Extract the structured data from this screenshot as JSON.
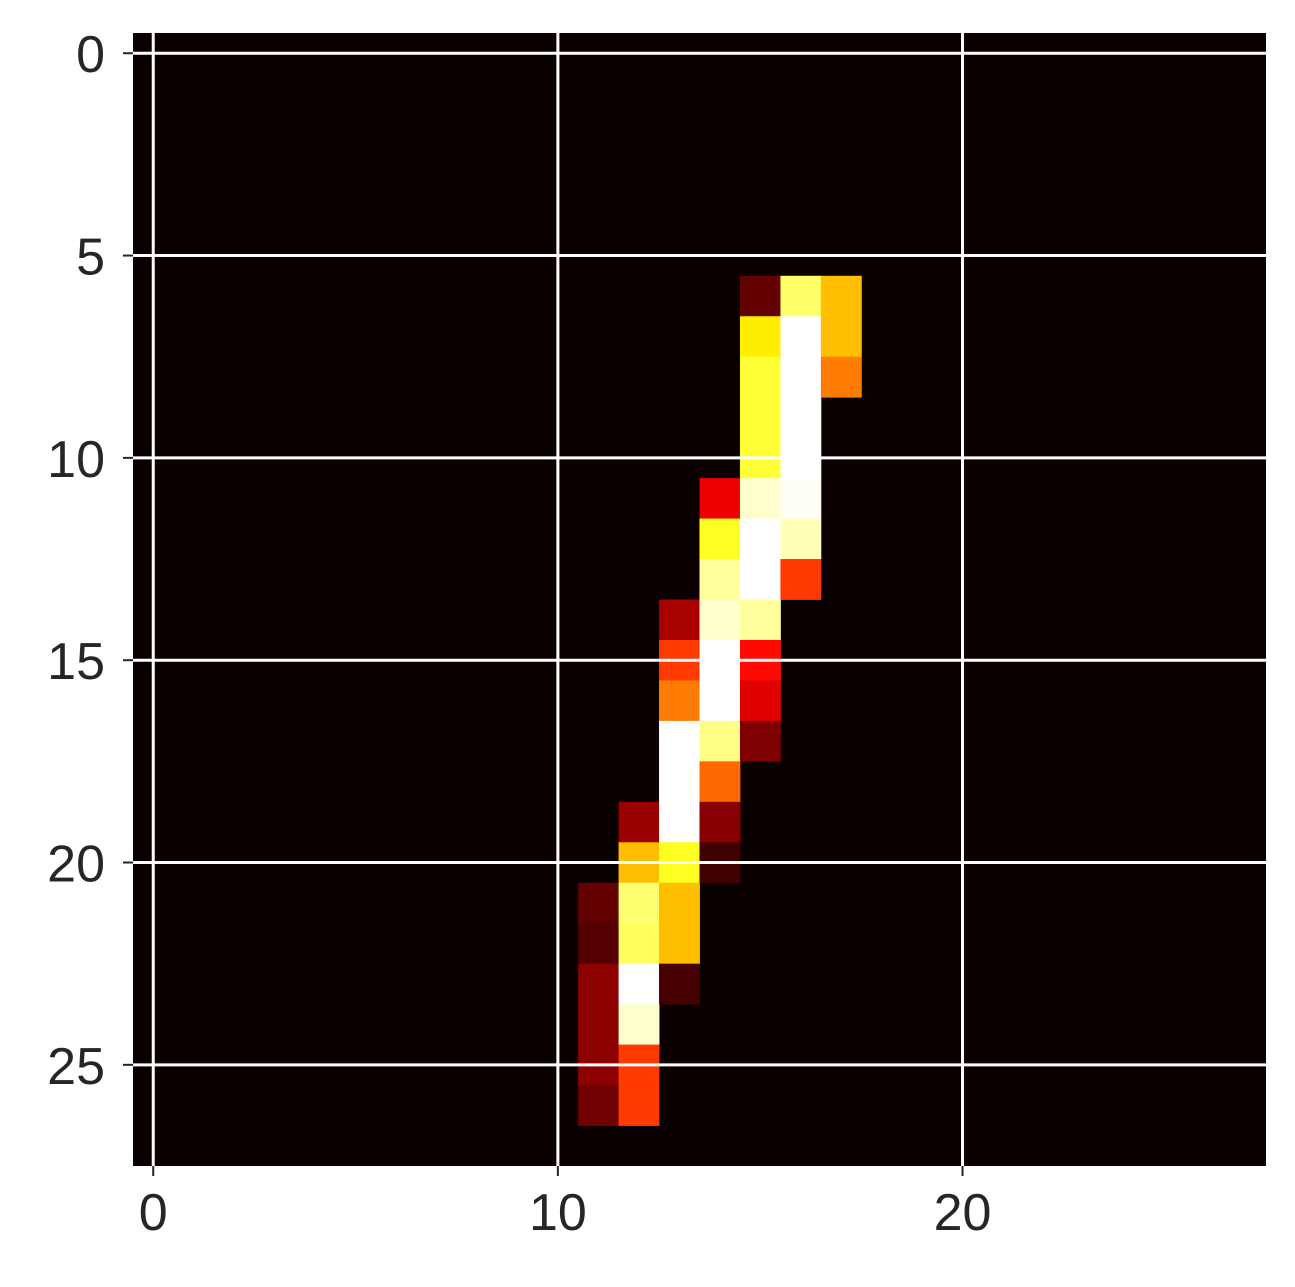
{
  "chart_data": {
    "type": "heatmap",
    "title": "",
    "xlabel": "",
    "ylabel": "",
    "colormap": "hot",
    "background_color": "#0b0000",
    "grid_color": "#ffffff",
    "grid": true,
    "rows": 28,
    "cols": 28,
    "xlim": [
      -0.5,
      27.5
    ],
    "ylim": [
      27.5,
      -0.5
    ],
    "x_ticks": [
      0,
      10,
      20
    ],
    "y_ticks": [
      0,
      5,
      10,
      15,
      20,
      25
    ],
    "x_tick_labels": [
      "0",
      "10",
      "20"
    ],
    "y_tick_labels": [
      "0",
      "5",
      "10",
      "15",
      "20",
      "25"
    ],
    "value_range": [
      0,
      1
    ],
    "cells": [
      [
        6,
        15,
        0.1
      ],
      [
        6,
        16,
        0.85
      ],
      [
        6,
        17,
        0.65
      ],
      [
        7,
        15,
        0.72
      ],
      [
        7,
        16,
        1.0
      ],
      [
        7,
        17,
        0.65
      ],
      [
        8,
        15,
        0.8
      ],
      [
        8,
        16,
        1.0
      ],
      [
        8,
        17,
        0.55
      ],
      [
        9,
        15,
        0.8
      ],
      [
        9,
        16,
        1.0
      ],
      [
        10,
        15,
        0.8
      ],
      [
        10,
        16,
        1.0
      ],
      [
        11,
        14,
        0.3
      ],
      [
        11,
        15,
        0.95
      ],
      [
        11,
        16,
        0.99
      ],
      [
        12,
        14,
        0.78
      ],
      [
        12,
        15,
        1.0
      ],
      [
        12,
        16,
        0.93
      ],
      [
        13,
        14,
        0.9
      ],
      [
        13,
        15,
        1.0
      ],
      [
        13,
        16,
        0.45
      ],
      [
        14,
        13,
        0.2
      ],
      [
        14,
        14,
        0.95
      ],
      [
        14,
        15,
        0.9
      ],
      [
        15,
        13,
        0.45
      ],
      [
        15,
        14,
        1.0
      ],
      [
        15,
        15,
        0.38
      ],
      [
        16,
        13,
        0.55
      ],
      [
        16,
        14,
        1.0
      ],
      [
        16,
        15,
        0.28
      ],
      [
        17,
        13,
        1.0
      ],
      [
        17,
        14,
        0.88
      ],
      [
        17,
        15,
        0.14
      ],
      [
        18,
        13,
        1.0
      ],
      [
        18,
        14,
        0.52
      ],
      [
        19,
        12,
        0.18
      ],
      [
        19,
        13,
        1.0
      ],
      [
        19,
        14,
        0.15
      ],
      [
        20,
        12,
        0.65
      ],
      [
        20,
        13,
        0.78
      ],
      [
        20,
        14,
        0.05
      ],
      [
        21,
        11,
        0.1
      ],
      [
        21,
        12,
        0.86
      ],
      [
        21,
        13,
        0.65
      ],
      [
        22,
        11,
        0.08
      ],
      [
        22,
        12,
        0.84
      ],
      [
        22,
        13,
        0.65
      ],
      [
        23,
        11,
        0.16
      ],
      [
        23,
        12,
        1.0
      ],
      [
        23,
        13,
        0.06
      ],
      [
        24,
        11,
        0.16
      ],
      [
        24,
        12,
        0.95
      ],
      [
        25,
        11,
        0.16
      ],
      [
        25,
        12,
        0.45
      ],
      [
        26,
        11,
        0.12
      ],
      [
        26,
        12,
        0.45
      ]
    ]
  }
}
